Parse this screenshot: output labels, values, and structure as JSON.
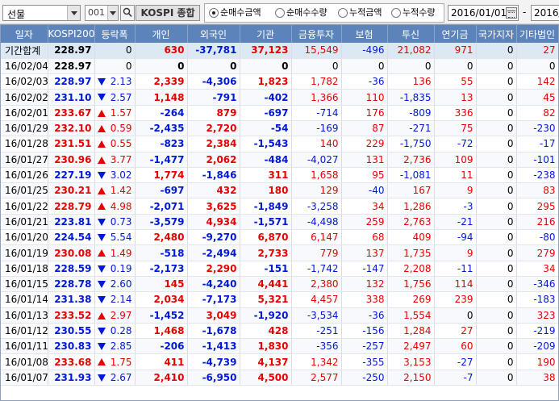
{
  "toolbar": {
    "market": "선물",
    "code": "001",
    "index_name": "KOSPI 종합",
    "radios": [
      {
        "label": "순매수금액",
        "checked": true
      },
      {
        "label": "순매수수량",
        "checked": false
      },
      {
        "label": "누적금액",
        "checked": false
      },
      {
        "label": "누적수량",
        "checked": false
      }
    ],
    "date_from": "2016/01/01",
    "date_sep": "-",
    "date_to": "2016/"
  },
  "columns": [
    "일자",
    "KOSPI200",
    "등락폭",
    "개인",
    "외국인",
    "기관",
    "금융투자",
    "보험",
    "투신",
    "연기금",
    "국가지자",
    "기타법인"
  ],
  "total": {
    "date": "기간합계",
    "kospi": "228.97",
    "change": "0",
    "individual": "630",
    "foreign": "-37,781",
    "institution": "37,123",
    "fin_invest": "15,549",
    "insurance": "-496",
    "trust": "21,082",
    "pension": "971",
    "govt": "0",
    "other_corp": "27"
  },
  "rows": [
    {
      "date": "16/02/04",
      "kospi": "228.97",
      "dir": "none",
      "change": "0",
      "individual": "0",
      "foreign": "0",
      "institution": "0",
      "fin_invest": "0",
      "insurance": "0",
      "trust": "0",
      "pension": "0",
      "govt": "0",
      "other_corp": "0"
    },
    {
      "date": "16/02/03",
      "kospi": "228.97",
      "dir": "down",
      "change": "2.13",
      "individual": "2,339",
      "foreign": "-4,306",
      "institution": "1,823",
      "fin_invest": "1,782",
      "insurance": "-36",
      "trust": "136",
      "pension": "55",
      "govt": "0",
      "other_corp": "142"
    },
    {
      "date": "16/02/02",
      "kospi": "231.10",
      "dir": "down",
      "change": "2.57",
      "individual": "1,148",
      "foreign": "-791",
      "institution": "-402",
      "fin_invest": "1,366",
      "insurance": "110",
      "trust": "-1,835",
      "pension": "13",
      "govt": "0",
      "other_corp": "45"
    },
    {
      "date": "16/02/01",
      "kospi": "233.67",
      "dir": "up",
      "change": "1.57",
      "individual": "-264",
      "foreign": "879",
      "institution": "-697",
      "fin_invest": "-714",
      "insurance": "176",
      "trust": "-809",
      "pension": "336",
      "govt": "0",
      "other_corp": "82"
    },
    {
      "date": "16/01/29",
      "kospi": "232.10",
      "dir": "up",
      "change": "0.59",
      "individual": "-2,435",
      "foreign": "2,720",
      "institution": "-54",
      "fin_invest": "-169",
      "insurance": "87",
      "trust": "-271",
      "pension": "75",
      "govt": "0",
      "other_corp": "-230"
    },
    {
      "date": "16/01/28",
      "kospi": "231.51",
      "dir": "up",
      "change": "0.55",
      "individual": "-823",
      "foreign": "2,384",
      "institution": "-1,543",
      "fin_invest": "140",
      "insurance": "229",
      "trust": "-1,750",
      "pension": "-72",
      "govt": "0",
      "other_corp": "-17"
    },
    {
      "date": "16/01/27",
      "kospi": "230.96",
      "dir": "up",
      "change": "3.77",
      "individual": "-1,477",
      "foreign": "2,062",
      "institution": "-484",
      "fin_invest": "-4,027",
      "insurance": "131",
      "trust": "2,736",
      "pension": "109",
      "govt": "0",
      "other_corp": "-101"
    },
    {
      "date": "16/01/26",
      "kospi": "227.19",
      "dir": "down",
      "change": "3.02",
      "individual": "1,774",
      "foreign": "-1,846",
      "institution": "311",
      "fin_invest": "1,658",
      "insurance": "95",
      "trust": "-1,081",
      "pension": "11",
      "govt": "0",
      "other_corp": "-238"
    },
    {
      "date": "16/01/25",
      "kospi": "230.21",
      "dir": "up",
      "change": "1.42",
      "individual": "-697",
      "foreign": "432",
      "institution": "180",
      "fin_invest": "129",
      "insurance": "-40",
      "trust": "167",
      "pension": "9",
      "govt": "0",
      "other_corp": "83"
    },
    {
      "date": "16/01/22",
      "kospi": "228.79",
      "dir": "up",
      "change": "4.98",
      "individual": "-2,071",
      "foreign": "3,625",
      "institution": "-1,849",
      "fin_invest": "-3,258",
      "insurance": "34",
      "trust": "1,286",
      "pension": "-3",
      "govt": "0",
      "other_corp": "295"
    },
    {
      "date": "16/01/21",
      "kospi": "223.81",
      "dir": "down",
      "change": "0.73",
      "individual": "-3,579",
      "foreign": "4,934",
      "institution": "-1,571",
      "fin_invest": "-4,498",
      "insurance": "259",
      "trust": "2,763",
      "pension": "-21",
      "govt": "0",
      "other_corp": "216"
    },
    {
      "date": "16/01/20",
      "kospi": "224.54",
      "dir": "down",
      "change": "5.54",
      "individual": "2,480",
      "foreign": "-9,270",
      "institution": "6,870",
      "fin_invest": "6,147",
      "insurance": "68",
      "trust": "409",
      "pension": "-94",
      "govt": "0",
      "other_corp": "-80"
    },
    {
      "date": "16/01/19",
      "kospi": "230.08",
      "dir": "up",
      "change": "1.49",
      "individual": "-518",
      "foreign": "-2,494",
      "institution": "2,733",
      "fin_invest": "779",
      "insurance": "137",
      "trust": "1,735",
      "pension": "9",
      "govt": "0",
      "other_corp": "279"
    },
    {
      "date": "16/01/18",
      "kospi": "228.59",
      "dir": "down",
      "change": "0.19",
      "individual": "-2,173",
      "foreign": "2,290",
      "institution": "-151",
      "fin_invest": "-1,742",
      "insurance": "-147",
      "trust": "2,208",
      "pension": "-11",
      "govt": "0",
      "other_corp": "34"
    },
    {
      "date": "16/01/15",
      "kospi": "228.78",
      "dir": "down",
      "change": "2.60",
      "individual": "145",
      "foreign": "-4,240",
      "institution": "4,441",
      "fin_invest": "2,380",
      "insurance": "132",
      "trust": "1,756",
      "pension": "114",
      "govt": "0",
      "other_corp": "-346"
    },
    {
      "date": "16/01/14",
      "kospi": "231.38",
      "dir": "down",
      "change": "2.14",
      "individual": "2,034",
      "foreign": "-7,173",
      "institution": "5,321",
      "fin_invest": "4,457",
      "insurance": "338",
      "trust": "269",
      "pension": "239",
      "govt": "0",
      "other_corp": "-183"
    },
    {
      "date": "16/01/13",
      "kospi": "233.52",
      "dir": "up",
      "change": "2.97",
      "individual": "-1,452",
      "foreign": "3,049",
      "institution": "-1,920",
      "fin_invest": "-3,534",
      "insurance": "-36",
      "trust": "1,554",
      "pension": "0",
      "govt": "0",
      "other_corp": "323"
    },
    {
      "date": "16/01/12",
      "kospi": "230.55",
      "dir": "down",
      "change": "0.28",
      "individual": "1,468",
      "foreign": "-1,678",
      "institution": "428",
      "fin_invest": "-251",
      "insurance": "-156",
      "trust": "1,284",
      "pension": "27",
      "govt": "0",
      "other_corp": "-219"
    },
    {
      "date": "16/01/11",
      "kospi": "230.83",
      "dir": "down",
      "change": "2.85",
      "individual": "-206",
      "foreign": "-1,413",
      "institution": "1,830",
      "fin_invest": "-356",
      "insurance": "-257",
      "trust": "2,497",
      "pension": "60",
      "govt": "0",
      "other_corp": "-209"
    },
    {
      "date": "16/01/08",
      "kospi": "233.68",
      "dir": "up",
      "change": "1.75",
      "individual": "411",
      "foreign": "-4,739",
      "institution": "4,137",
      "fin_invest": "1,342",
      "insurance": "-355",
      "trust": "3,153",
      "pension": "-27",
      "govt": "0",
      "other_corp": "190"
    },
    {
      "date": "16/01/07",
      "kospi": "231.93",
      "dir": "down",
      "change": "2.67",
      "individual": "2,410",
      "foreign": "-6,950",
      "institution": "4,500",
      "fin_invest": "2,577",
      "insurance": "-250",
      "trust": "2,150",
      "pension": "-7",
      "govt": "0",
      "other_corp": "38"
    }
  ],
  "colors": {
    "up": "#e60000",
    "down": "#0019d6",
    "header_bg": "#5d84ba",
    "total_bg": "#dde8f5"
  }
}
